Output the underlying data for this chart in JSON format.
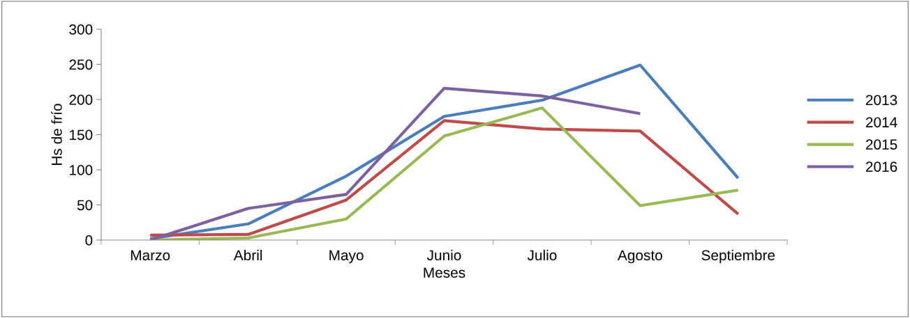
{
  "chart_data": {
    "type": "line",
    "xlabel": "Meses",
    "ylabel": "Hs de frío",
    "categories": [
      "Marzo",
      "Abril",
      "Mayo",
      "Junio",
      "Julio",
      "Agosto",
      "Septiembre"
    ],
    "series": [
      {
        "name": "2013",
        "color": "#4a7ebb",
        "values": [
          2,
          23,
          91,
          176,
          199,
          249,
          88
        ]
      },
      {
        "name": "2014",
        "color": "#be4b48",
        "values": [
          7,
          8,
          57,
          170,
          158,
          155,
          37
        ]
      },
      {
        "name": "2015",
        "color": "#98b954",
        "values": [
          0,
          3,
          30,
          148,
          188,
          49,
          71
        ]
      },
      {
        "name": "2016",
        "color": "#7d60a0",
        "values": [
          0,
          45,
          65,
          216,
          205,
          180,
          null
        ]
      }
    ],
    "ylim": [
      0,
      300
    ],
    "yticks": [
      0,
      50,
      100,
      150,
      200,
      250,
      300
    ],
    "grid": false,
    "legend": "right",
    "marker": "none",
    "line_style": "solid"
  }
}
